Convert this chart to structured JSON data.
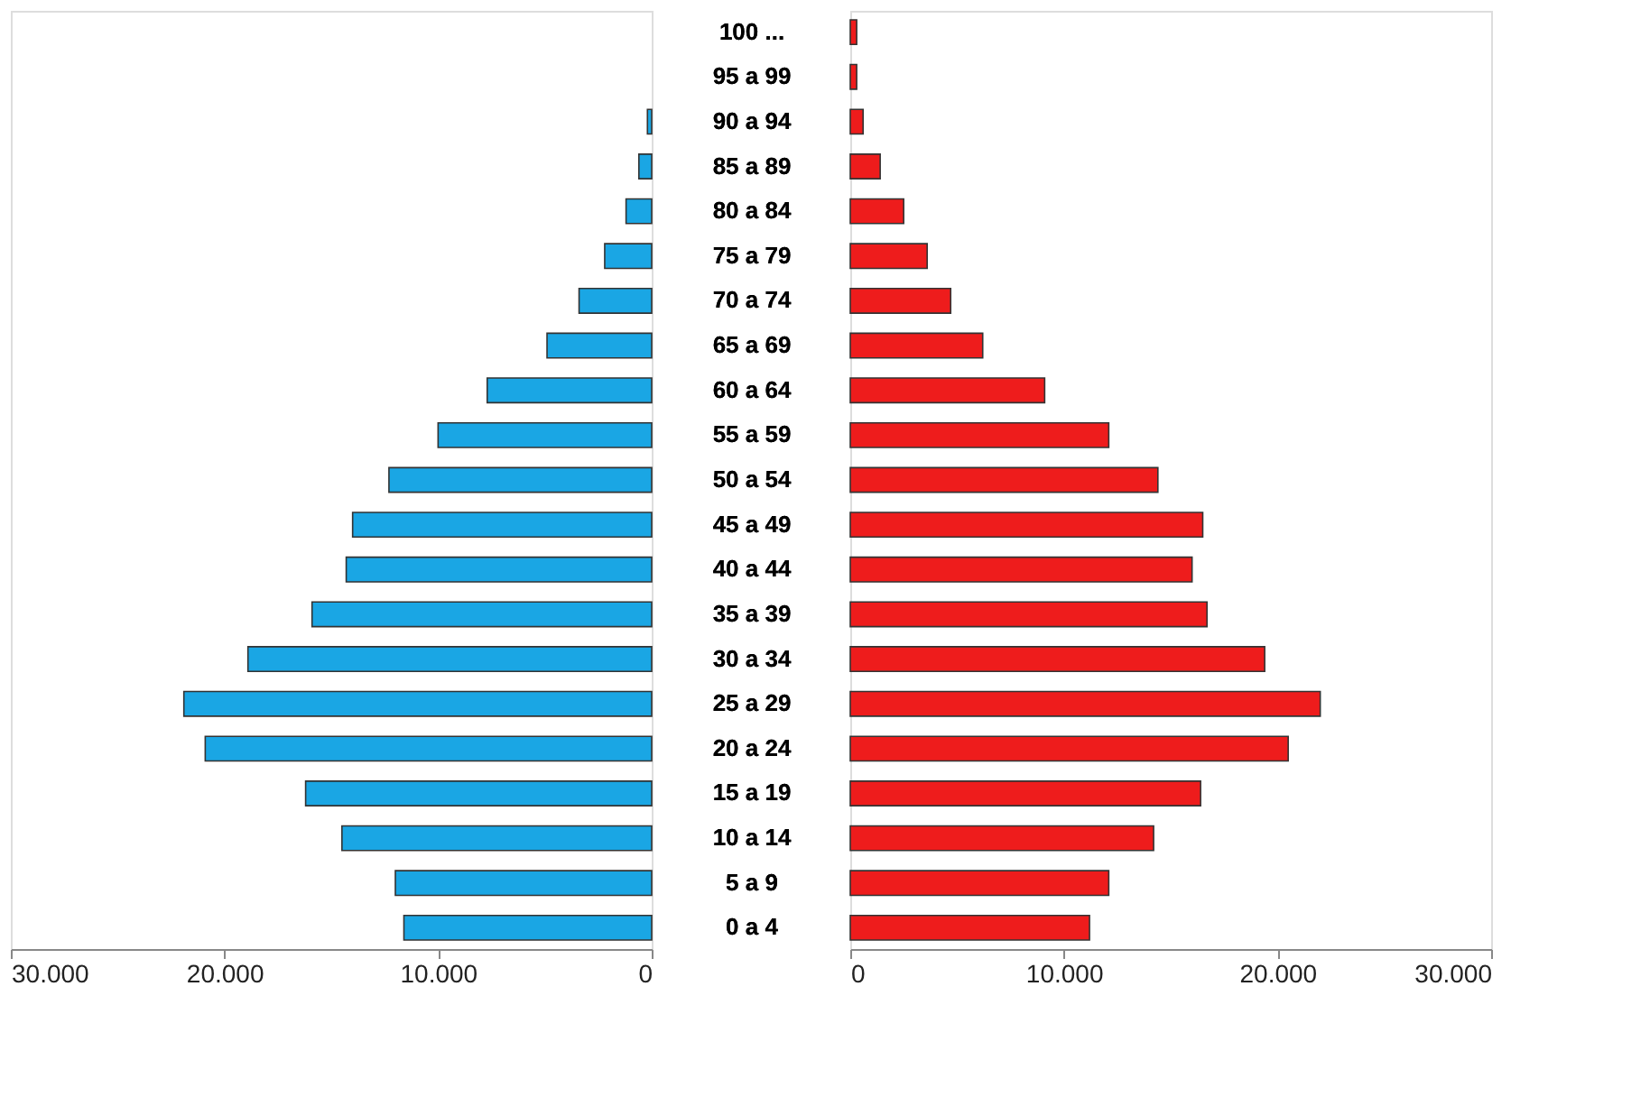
{
  "chart_data": [
    {
      "type": "bar",
      "orientation": "horizontal",
      "color": "#1aa6e4",
      "categories": [
        "100 ...",
        "95 a 99",
        "90 a 94",
        "85 a 89",
        "80 a 84",
        "75 a 79",
        "70 a 74",
        "65 a 69",
        "60 a 64",
        "55 a 59",
        "50 a 54",
        "45 a 49",
        "40 a 44",
        "35 a 39",
        "30 a 34",
        "25 a 29",
        "20 a 24",
        "15 a 19",
        "10 a 14",
        "5 a 9",
        "0 a 4"
      ],
      "values": [
        null,
        null,
        200,
        600,
        1200,
        2200,
        3400,
        4900,
        7700,
        10000,
        12300,
        14000,
        14300,
        15900,
        18900,
        21900,
        20900,
        16200,
        14500,
        12000,
        11600
      ],
      "xlim": [
        30000,
        0
      ],
      "xticks": [
        {
          "value": 30000,
          "label": "30.000"
        },
        {
          "value": 20000,
          "label": "20.000"
        },
        {
          "value": 10000,
          "label": "10.000"
        },
        0
      ],
      "grid": false
    },
    {
      "type": "bar",
      "orientation": "horizontal",
      "color": "#ee1c1c",
      "categories": [
        "100 ...",
        "95 a 99",
        "90 a 94",
        "85 a 89",
        "80 a 84",
        "75 a 79",
        "70 a 74",
        "65 a 69",
        "60 a 64",
        "55 a 59",
        "50 a 54",
        "45 a 49",
        "40 a 44",
        "35 a 39",
        "30 a 34",
        "25 a 29",
        "20 a 24",
        "15 a 19",
        "10 a 14",
        "5 a 9",
        "0 a 4"
      ],
      "values": [
        300,
        300,
        600,
        1400,
        2500,
        3600,
        4700,
        6200,
        9100,
        12100,
        14400,
        16500,
        16000,
        16700,
        19400,
        22000,
        20500,
        16400,
        14200,
        12100,
        11200
      ],
      "xlim": [
        0,
        30000
      ],
      "xticks": [
        0,
        {
          "value": 10000,
          "label": "10.000"
        },
        {
          "value": 20000,
          "label": "20.000"
        },
        {
          "value": 30000,
          "label": "30.000"
        }
      ],
      "grid": false
    }
  ]
}
